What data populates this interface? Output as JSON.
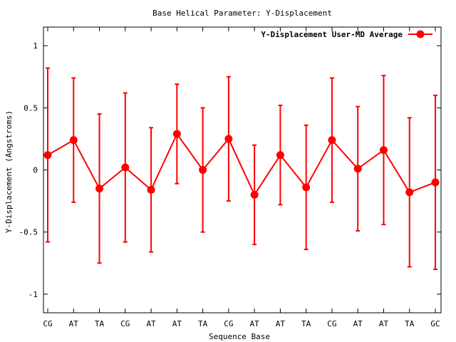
{
  "chart_data": {
    "type": "line",
    "title": "Base  Helical Parameter: Y-Displacement",
    "xlabel": "Sequence Base",
    "ylabel": "Y-Displacement (Angstroms)",
    "categories": [
      "CG",
      "AT",
      "TA",
      "CG",
      "AT",
      "AT",
      "TA",
      "CG",
      "AT",
      "AT",
      "TA",
      "CG",
      "AT",
      "AT",
      "TA",
      "GC"
    ],
    "ylim": [
      -1.15,
      1.15
    ],
    "yticks": [
      -1,
      -0.5,
      0,
      0.5,
      1
    ],
    "ytick_labels": [
      "-1",
      "-0.5",
      "0",
      "0.5",
      "1"
    ],
    "grid": false,
    "legend_position": "top-right",
    "series": [
      {
        "name": "Y-Displacement User-MD Average",
        "color": "#ff0000",
        "values": [
          0.12,
          0.24,
          -0.15,
          0.02,
          -0.16,
          0.29,
          0.0,
          0.25,
          -0.2,
          0.12,
          -0.14,
          0.24,
          0.01,
          0.16,
          -0.18,
          -0.1
        ],
        "errors": [
          0.7,
          0.5,
          0.6,
          0.6,
          0.5,
          0.4,
          0.5,
          0.5,
          0.4,
          0.4,
          0.5,
          0.5,
          0.5,
          0.6,
          0.6,
          0.7
        ]
      }
    ]
  }
}
